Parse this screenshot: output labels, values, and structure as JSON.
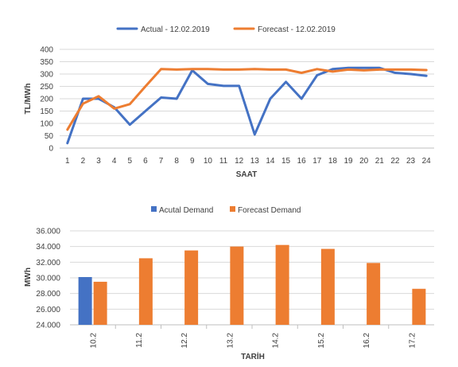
{
  "colors": {
    "actual": "#4472C4",
    "forecast": "#ED7D31",
    "grid": "#D9D9D9",
    "axis": "#BFBFBF"
  },
  "chart_data": [
    {
      "type": "line",
      "legend_position": "top",
      "grid": true,
      "xlabel": "SAAT",
      "ylabel": "TL/MWh",
      "ylim": [
        0,
        400
      ],
      "yticks": [
        "0",
        "50",
        "100",
        "150",
        "200",
        "250",
        "300",
        "350",
        "400"
      ],
      "x": [
        "1",
        "2",
        "3",
        "4",
        "5",
        "6",
        "7",
        "8",
        "9",
        "10",
        "11",
        "12",
        "13",
        "14",
        "15",
        "16",
        "17",
        "18",
        "19",
        "20",
        "21",
        "22",
        "23",
        "24"
      ],
      "series": [
        {
          "name": "Actual - 12.02.2019",
          "color": "#4472C4",
          "values": [
            20,
            200,
            200,
            165,
            95,
            150,
            205,
            200,
            315,
            260,
            252,
            252,
            55,
            200,
            268,
            200,
            295,
            320,
            325,
            325,
            325,
            305,
            300,
            293
          ]
        },
        {
          "name": "Forecast - 12.02.2019",
          "color": "#ED7D31",
          "values": [
            75,
            180,
            210,
            160,
            178,
            250,
            320,
            318,
            320,
            320,
            318,
            318,
            320,
            318,
            318,
            305,
            320,
            310,
            318,
            315,
            318,
            318,
            318,
            316
          ]
        }
      ]
    },
    {
      "type": "bar",
      "legend_position": "top",
      "grid": true,
      "xlabel": "TARİH",
      "ylabel": "MWh",
      "ylim": [
        24000,
        36000
      ],
      "yticks": [
        "24.000",
        "26.000",
        "28.000",
        "30.000",
        "32.000",
        "34.000",
        "36.000"
      ],
      "categories": [
        "10.2",
        "11.2",
        "12.2",
        "13.2",
        "14.2",
        "15.2",
        "16.2",
        "17.2"
      ],
      "series": [
        {
          "name": "Acutal Demand",
          "color": "#4472C4",
          "values": [
            30100,
            null,
            null,
            null,
            null,
            null,
            null,
            null
          ]
        },
        {
          "name": "Forecast Demand",
          "color": "#ED7D31",
          "values": [
            29500,
            32500,
            33500,
            34000,
            34200,
            33700,
            31900,
            28600
          ]
        }
      ]
    }
  ]
}
